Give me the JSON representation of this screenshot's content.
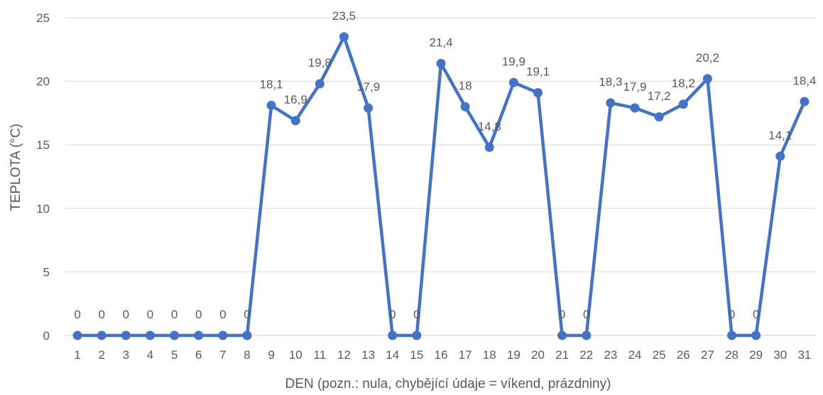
{
  "chart_data": {
    "type": "line",
    "title": "",
    "xlabel": "DEN (pozn.: nula, chybějící údaje = víkend, prázdniny)",
    "ylabel": "TEPLOTA (°C)",
    "ylim": [
      0,
      25
    ],
    "yticks": [
      "0",
      "5",
      "10",
      "15",
      "20",
      "25"
    ],
    "grid": "horizontal",
    "legend": "none",
    "line_color": "#4472C4",
    "categories": [
      "1",
      "2",
      "3",
      "4",
      "5",
      "6",
      "7",
      "8",
      "9",
      "10",
      "11",
      "12",
      "13",
      "14",
      "15",
      "16",
      "17",
      "18",
      "19",
      "20",
      "21",
      "22",
      "23",
      "24",
      "25",
      "26",
      "27",
      "28",
      "29",
      "30",
      "31"
    ],
    "series": [
      {
        "values": [
          0,
          0,
          0,
          0,
          0,
          0,
          0,
          0,
          18.1,
          16.9,
          19.8,
          23.5,
          17.9,
          0,
          0,
          21.4,
          18,
          14.8,
          19.9,
          19.1,
          0,
          0,
          18.3,
          17.9,
          17.2,
          18.2,
          20.2,
          0,
          0,
          14.1,
          18.4
        ],
        "labels": [
          "0",
          "0",
          "0",
          "0",
          "0",
          "0",
          "0",
          "0",
          "18,1",
          "16,9",
          "19,8",
          "23,5",
          "17,9",
          "0",
          "0",
          "21,4",
          "18",
          "14,8",
          "19,9",
          "19,1",
          "0",
          "0",
          "18,3",
          "17,9",
          "17,2",
          "18,2",
          "20,2",
          "0",
          "0",
          "14,1",
          "18,4"
        ]
      }
    ]
  }
}
